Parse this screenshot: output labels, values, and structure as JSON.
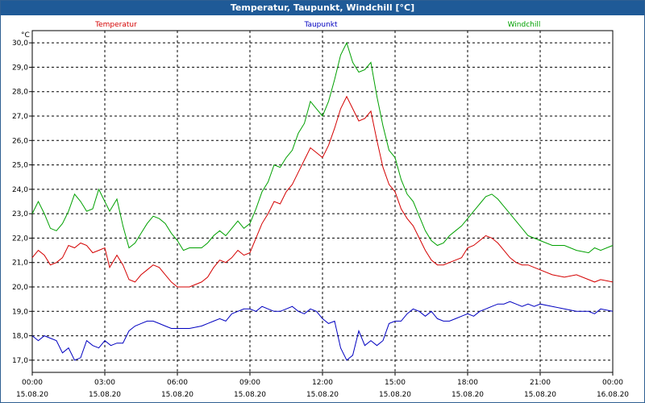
{
  "window": {
    "title": "Temperatur, Taupunkt, Windchill [°C]"
  },
  "chart_data": {
    "type": "line",
    "ylabel": "°C",
    "ylim": [
      16.5,
      30.5
    ],
    "y_ticks": [
      "17,0",
      "18,0",
      "19,0",
      "20,0",
      "21,0",
      "22,0",
      "23,0",
      "24,0",
      "25,0",
      "26,0",
      "27,0",
      "28,0",
      "29,0",
      "30,0"
    ],
    "y_tick_values": [
      17,
      18,
      19,
      20,
      21,
      22,
      23,
      24,
      25,
      26,
      27,
      28,
      29,
      30
    ],
    "xlim": [
      0,
      24
    ],
    "x_ticks": [
      {
        "hour": 0,
        "time": "00:00",
        "date": "15.08.20"
      },
      {
        "hour": 3,
        "time": "03:00",
        "date": "15.08.20"
      },
      {
        "hour": 6,
        "time": "06:00",
        "date": "15.08.20"
      },
      {
        "hour": 9,
        "time": "09:00",
        "date": "15.08.20"
      },
      {
        "hour": 12,
        "time": "12:00",
        "date": "15.08.20"
      },
      {
        "hour": 15,
        "time": "15:00",
        "date": "15.08.20"
      },
      {
        "hour": 18,
        "time": "18:00",
        "date": "15.08.20"
      },
      {
        "hour": 21,
        "time": "21:00",
        "date": "15.08.20"
      },
      {
        "hour": 24,
        "time": "00:00",
        "date": "16.08.20"
      }
    ],
    "grid": true,
    "legend_position": "top",
    "series": [
      {
        "name": "Temperatur",
        "color": "#d40000",
        "points": [
          [
            0,
            21.2
          ],
          [
            0.25,
            21.5
          ],
          [
            0.5,
            21.3
          ],
          [
            0.75,
            20.9
          ],
          [
            1.0,
            21.0
          ],
          [
            1.25,
            21.2
          ],
          [
            1.5,
            21.7
          ],
          [
            1.75,
            21.6
          ],
          [
            2.0,
            21.8
          ],
          [
            2.25,
            21.7
          ],
          [
            2.5,
            21.4
          ],
          [
            2.75,
            21.5
          ],
          [
            3.0,
            21.6
          ],
          [
            3.2,
            20.8
          ],
          [
            3.5,
            21.3
          ],
          [
            3.75,
            20.9
          ],
          [
            4.0,
            20.3
          ],
          [
            4.25,
            20.2
          ],
          [
            4.5,
            20.5
          ],
          [
            4.75,
            20.7
          ],
          [
            5.0,
            20.9
          ],
          [
            5.25,
            20.8
          ],
          [
            5.5,
            20.5
          ],
          [
            5.75,
            20.2
          ],
          [
            6.0,
            20.0
          ],
          [
            6.5,
            20.0
          ],
          [
            7.0,
            20.2
          ],
          [
            7.25,
            20.4
          ],
          [
            7.5,
            20.8
          ],
          [
            7.75,
            21.1
          ],
          [
            8.0,
            21.0
          ],
          [
            8.25,
            21.2
          ],
          [
            8.5,
            21.5
          ],
          [
            8.75,
            21.3
          ],
          [
            9.0,
            21.4
          ],
          [
            9.25,
            22.0
          ],
          [
            9.5,
            22.6
          ],
          [
            9.75,
            23.0
          ],
          [
            10.0,
            23.5
          ],
          [
            10.25,
            23.4
          ],
          [
            10.5,
            23.9
          ],
          [
            10.75,
            24.2
          ],
          [
            11.0,
            24.7
          ],
          [
            11.25,
            25.2
          ],
          [
            11.5,
            25.7
          ],
          [
            11.75,
            25.5
          ],
          [
            12.0,
            25.3
          ],
          [
            12.25,
            25.8
          ],
          [
            12.5,
            26.5
          ],
          [
            12.75,
            27.3
          ],
          [
            13.0,
            27.8
          ],
          [
            13.25,
            27.3
          ],
          [
            13.5,
            26.8
          ],
          [
            13.75,
            26.9
          ],
          [
            14.0,
            27.2
          ],
          [
            14.25,
            26.0
          ],
          [
            14.5,
            24.9
          ],
          [
            14.75,
            24.2
          ],
          [
            15.0,
            23.9
          ],
          [
            15.25,
            23.2
          ],
          [
            15.5,
            22.8
          ],
          [
            15.75,
            22.5
          ],
          [
            16.0,
            22.0
          ],
          [
            16.25,
            21.5
          ],
          [
            16.5,
            21.1
          ],
          [
            16.75,
            20.9
          ],
          [
            17.0,
            20.9
          ],
          [
            17.25,
            21.0
          ],
          [
            17.5,
            21.1
          ],
          [
            17.75,
            21.2
          ],
          [
            18.0,
            21.6
          ],
          [
            18.25,
            21.7
          ],
          [
            18.5,
            21.9
          ],
          [
            18.75,
            22.1
          ],
          [
            19.0,
            22.0
          ],
          [
            19.25,
            21.8
          ],
          [
            19.5,
            21.5
          ],
          [
            19.75,
            21.2
          ],
          [
            20.0,
            21.0
          ],
          [
            20.25,
            20.9
          ],
          [
            20.5,
            20.9
          ],
          [
            20.75,
            20.8
          ],
          [
            21.0,
            20.7
          ],
          [
            21.5,
            20.5
          ],
          [
            22.0,
            20.4
          ],
          [
            22.5,
            20.5
          ],
          [
            23.0,
            20.3
          ],
          [
            23.25,
            20.2
          ],
          [
            23.5,
            20.3
          ],
          [
            24.0,
            20.2
          ]
        ]
      },
      {
        "name": "Taupunkt",
        "color": "#0000c0",
        "points": [
          [
            0,
            18.0
          ],
          [
            0.25,
            17.8
          ],
          [
            0.5,
            18.0
          ],
          [
            0.75,
            17.9
          ],
          [
            1.0,
            17.8
          ],
          [
            1.25,
            17.3
          ],
          [
            1.5,
            17.5
          ],
          [
            1.75,
            17.0
          ],
          [
            2.0,
            17.1
          ],
          [
            2.25,
            17.8
          ],
          [
            2.5,
            17.6
          ],
          [
            2.75,
            17.5
          ],
          [
            3.0,
            17.8
          ],
          [
            3.25,
            17.6
          ],
          [
            3.5,
            17.7
          ],
          [
            3.75,
            17.7
          ],
          [
            4.0,
            18.2
          ],
          [
            4.25,
            18.4
          ],
          [
            4.5,
            18.5
          ],
          [
            4.75,
            18.6
          ],
          [
            5.0,
            18.6
          ],
          [
            5.25,
            18.5
          ],
          [
            5.5,
            18.4
          ],
          [
            5.75,
            18.3
          ],
          [
            6.0,
            18.3
          ],
          [
            6.5,
            18.3
          ],
          [
            7.0,
            18.4
          ],
          [
            7.25,
            18.5
          ],
          [
            7.5,
            18.6
          ],
          [
            7.75,
            18.7
          ],
          [
            8.0,
            18.6
          ],
          [
            8.25,
            18.9
          ],
          [
            8.5,
            19.0
          ],
          [
            8.75,
            19.1
          ],
          [
            9.0,
            19.1
          ],
          [
            9.25,
            19.0
          ],
          [
            9.5,
            19.2
          ],
          [
            9.75,
            19.1
          ],
          [
            10.0,
            19.0
          ],
          [
            10.25,
            19.0
          ],
          [
            10.5,
            19.1
          ],
          [
            10.75,
            19.2
          ],
          [
            11.0,
            19.0
          ],
          [
            11.25,
            18.9
          ],
          [
            11.5,
            19.1
          ],
          [
            11.75,
            19.0
          ],
          [
            12.0,
            18.7
          ],
          [
            12.25,
            18.5
          ],
          [
            12.5,
            18.6
          ],
          [
            12.75,
            17.5
          ],
          [
            13.0,
            17.0
          ],
          [
            13.25,
            17.2
          ],
          [
            13.5,
            18.2
          ],
          [
            13.75,
            17.6
          ],
          [
            14.0,
            17.8
          ],
          [
            14.25,
            17.6
          ],
          [
            14.5,
            17.8
          ],
          [
            14.75,
            18.5
          ],
          [
            15.0,
            18.6
          ],
          [
            15.25,
            18.6
          ],
          [
            15.5,
            18.9
          ],
          [
            15.75,
            19.1
          ],
          [
            16.0,
            19.0
          ],
          [
            16.25,
            18.8
          ],
          [
            16.5,
            19.0
          ],
          [
            16.75,
            18.7
          ],
          [
            17.0,
            18.6
          ],
          [
            17.25,
            18.6
          ],
          [
            17.5,
            18.7
          ],
          [
            17.75,
            18.8
          ],
          [
            18.0,
            18.9
          ],
          [
            18.25,
            18.8
          ],
          [
            18.5,
            19.0
          ],
          [
            18.75,
            19.1
          ],
          [
            19.0,
            19.2
          ],
          [
            19.25,
            19.3
          ],
          [
            19.5,
            19.3
          ],
          [
            19.75,
            19.4
          ],
          [
            20.0,
            19.3
          ],
          [
            20.25,
            19.2
          ],
          [
            20.5,
            19.3
          ],
          [
            20.75,
            19.2
          ],
          [
            21.0,
            19.3
          ],
          [
            21.5,
            19.2
          ],
          [
            22.0,
            19.1
          ],
          [
            22.5,
            19.0
          ],
          [
            23.0,
            19.0
          ],
          [
            23.25,
            18.9
          ],
          [
            23.5,
            19.1
          ],
          [
            24.0,
            19.0
          ]
        ]
      },
      {
        "name": "Windchill",
        "color": "#00a000",
        "points": [
          [
            0,
            23.0
          ],
          [
            0.25,
            23.5
          ],
          [
            0.5,
            23.0
          ],
          [
            0.75,
            22.4
          ],
          [
            1.0,
            22.3
          ],
          [
            1.25,
            22.6
          ],
          [
            1.5,
            23.1
          ],
          [
            1.75,
            23.8
          ],
          [
            2.0,
            23.5
          ],
          [
            2.25,
            23.1
          ],
          [
            2.5,
            23.2
          ],
          [
            2.75,
            24.0
          ],
          [
            3.0,
            23.5
          ],
          [
            3.2,
            23.1
          ],
          [
            3.5,
            23.6
          ],
          [
            3.75,
            22.5
          ],
          [
            4.0,
            21.6
          ],
          [
            4.25,
            21.8
          ],
          [
            4.5,
            22.2
          ],
          [
            4.75,
            22.6
          ],
          [
            5.0,
            22.9
          ],
          [
            5.25,
            22.8
          ],
          [
            5.5,
            22.6
          ],
          [
            5.75,
            22.2
          ],
          [
            6.0,
            21.9
          ],
          [
            6.25,
            21.5
          ],
          [
            6.5,
            21.6
          ],
          [
            7.0,
            21.6
          ],
          [
            7.25,
            21.8
          ],
          [
            7.5,
            22.1
          ],
          [
            7.75,
            22.3
          ],
          [
            8.0,
            22.1
          ],
          [
            8.25,
            22.4
          ],
          [
            8.5,
            22.7
          ],
          [
            8.75,
            22.4
          ],
          [
            9.0,
            22.6
          ],
          [
            9.25,
            23.2
          ],
          [
            9.5,
            23.9
          ],
          [
            9.75,
            24.3
          ],
          [
            10.0,
            25.0
          ],
          [
            10.25,
            24.9
          ],
          [
            10.5,
            25.3
          ],
          [
            10.75,
            25.6
          ],
          [
            11.0,
            26.3
          ],
          [
            11.25,
            26.7
          ],
          [
            11.5,
            27.6
          ],
          [
            11.75,
            27.3
          ],
          [
            12.0,
            27.0
          ],
          [
            12.25,
            27.6
          ],
          [
            12.5,
            28.5
          ],
          [
            12.75,
            29.5
          ],
          [
            13.0,
            30.0
          ],
          [
            13.25,
            29.2
          ],
          [
            13.5,
            28.8
          ],
          [
            13.75,
            28.9
          ],
          [
            14.0,
            29.2
          ],
          [
            14.25,
            27.8
          ],
          [
            14.5,
            26.6
          ],
          [
            14.75,
            25.6
          ],
          [
            15.0,
            25.3
          ],
          [
            15.25,
            24.4
          ],
          [
            15.5,
            23.8
          ],
          [
            15.75,
            23.5
          ],
          [
            16.0,
            22.9
          ],
          [
            16.25,
            22.3
          ],
          [
            16.5,
            21.9
          ],
          [
            16.75,
            21.7
          ],
          [
            17.0,
            21.8
          ],
          [
            17.25,
            22.1
          ],
          [
            17.5,
            22.3
          ],
          [
            17.75,
            22.5
          ],
          [
            18.0,
            22.8
          ],
          [
            18.25,
            23.1
          ],
          [
            18.5,
            23.4
          ],
          [
            18.75,
            23.7
          ],
          [
            19.0,
            23.8
          ],
          [
            19.25,
            23.6
          ],
          [
            19.5,
            23.3
          ],
          [
            19.75,
            23.0
          ],
          [
            20.0,
            22.7
          ],
          [
            20.25,
            22.4
          ],
          [
            20.5,
            22.1
          ],
          [
            20.75,
            22.0
          ],
          [
            21.0,
            21.9
          ],
          [
            21.5,
            21.7
          ],
          [
            22.0,
            21.7
          ],
          [
            22.5,
            21.5
          ],
          [
            23.0,
            21.4
          ],
          [
            23.25,
            21.6
          ],
          [
            23.5,
            21.5
          ],
          [
            24.0,
            21.7
          ]
        ]
      }
    ]
  }
}
